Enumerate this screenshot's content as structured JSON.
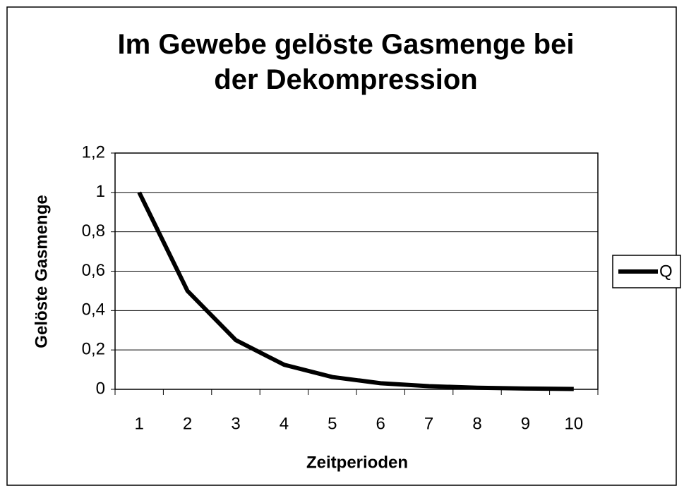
{
  "chart_data": {
    "type": "line",
    "title": "Im Gewebe gelöste Gasmenge bei der Dekompression",
    "x_label": "Zeitperioden",
    "y_label": "Gelöste Gasmenge",
    "categories": [
      "1",
      "2",
      "3",
      "4",
      "5",
      "6",
      "7",
      "8",
      "9",
      "10"
    ],
    "series": [
      {
        "name": "Q",
        "color": "#000000",
        "values": [
          1,
          0.5,
          0.25,
          0.125,
          0.0625,
          0.031,
          0.016,
          0.008,
          0.004,
          0.002
        ]
      }
    ],
    "ylim": [
      0,
      1.2
    ],
    "yticks": [
      0,
      {
        "value": 0.2,
        "label": "0,2"
      },
      {
        "value": 0.4,
        "label": "0,4"
      },
      {
        "value": 0.6,
        "label": "0,6"
      },
      {
        "value": 0.8,
        "label": "0,8"
      },
      1,
      {
        "value": 1.2,
        "label": "1,2"
      }
    ],
    "grid": true,
    "legend": "right"
  }
}
